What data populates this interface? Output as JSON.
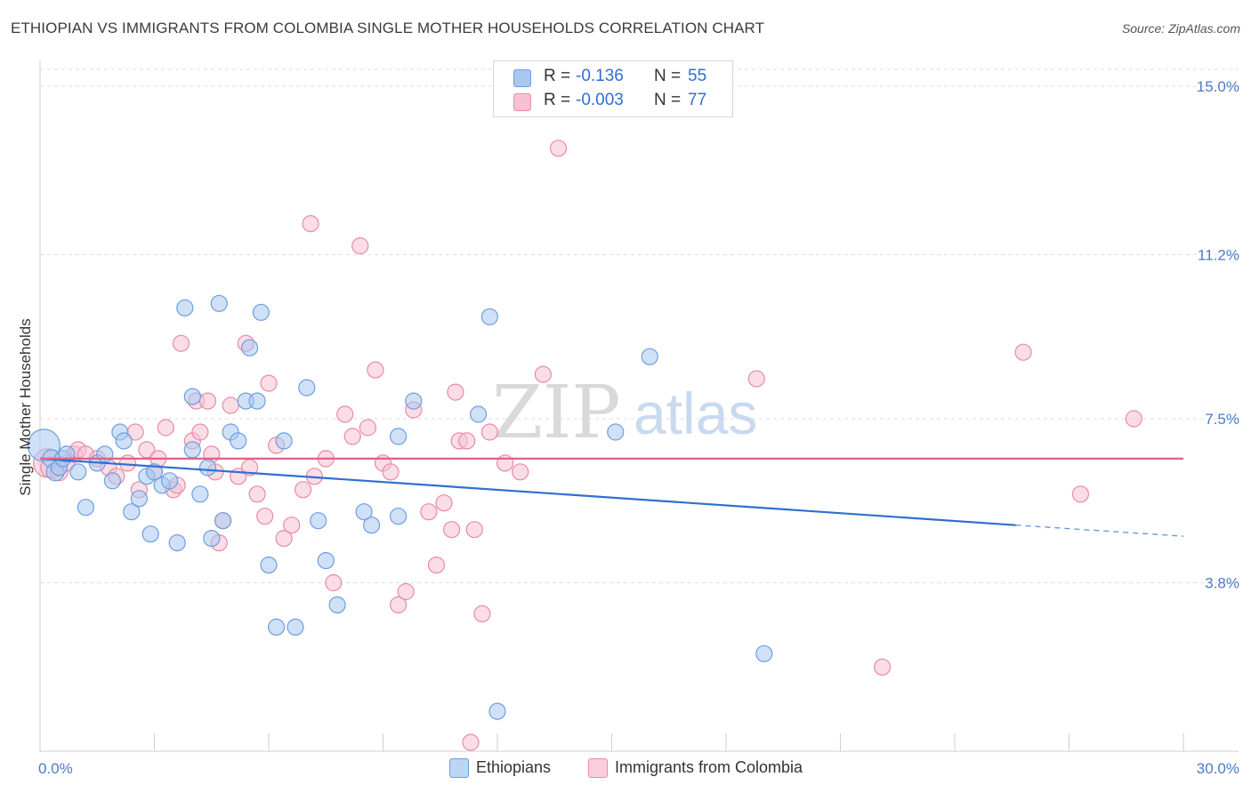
{
  "title": "ETHIOPIAN VS IMMIGRANTS FROM COLOMBIA SINGLE MOTHER HOUSEHOLDS CORRELATION CHART",
  "source": "Source: ZipAtlas.com",
  "watermark": {
    "zip": "ZIP",
    "atlas": "atlas"
  },
  "legend": {
    "r_label": "R =",
    "n_label": "N =",
    "rows": [
      {
        "name": "Ethiopians",
        "r": "-0.136",
        "n": "55",
        "color": "#a9c8f0",
        "border": "#6d9ee0"
      },
      {
        "name": "Immigrants from Colombia",
        "r": "-0.003",
        "n": "77",
        "color": "#f7c1d2",
        "border": "#e98aa8"
      }
    ]
  },
  "chart_data": {
    "type": "scatter",
    "title": "ETHIOPIAN VS IMMIGRANTS FROM COLOMBIA SINGLE MOTHER HOUSEHOLDS CORRELATION CHART",
    "xlabel": "",
    "ylabel": "Single Mother Households",
    "xlim": [
      0,
      30
    ],
    "ylim": [
      0,
      15.8
    ],
    "x_tick_labels": [
      "0.0%",
      "30.0%"
    ],
    "y_ticks": [
      3.8,
      7.5,
      11.2,
      15.0
    ],
    "y_tick_labels": [
      "3.8%",
      "7.5%",
      "11.2%",
      "15.0%"
    ],
    "grid": true,
    "series": [
      {
        "name": "Ethiopians",
        "color": "#6d9ee0",
        "fill": "#a9c8f0",
        "trend": {
          "x0": 0,
          "y0": 6.6,
          "x1": 25.6,
          "y1": 5.1,
          "dash_to_x": 30,
          "dash_to_y": 4.85,
          "color": "#2f6fd1"
        },
        "points": [
          [
            0.1,
            6.9,
            18
          ],
          [
            0.3,
            6.6,
            10
          ],
          [
            0.4,
            6.3,
            10
          ],
          [
            0.5,
            6.4,
            9
          ],
          [
            0.6,
            6.6,
            9
          ],
          [
            0.7,
            6.7,
            9
          ],
          [
            1.0,
            6.3,
            9
          ],
          [
            1.2,
            5.5,
            9
          ],
          [
            1.5,
            6.5,
            9
          ],
          [
            1.7,
            6.7,
            9
          ],
          [
            1.9,
            6.1,
            9
          ],
          [
            2.1,
            7.2,
            9
          ],
          [
            2.2,
            7.0,
            9
          ],
          [
            2.4,
            5.4,
            9
          ],
          [
            2.6,
            5.7,
            9
          ],
          [
            2.8,
            6.2,
            9
          ],
          [
            2.9,
            4.9,
            9
          ],
          [
            3.0,
            6.3,
            9
          ],
          [
            3.2,
            6.0,
            9
          ],
          [
            3.4,
            6.1,
            9
          ],
          [
            3.6,
            4.7,
            9
          ],
          [
            3.8,
            10.0,
            9
          ],
          [
            4.0,
            8.0,
            9
          ],
          [
            4.0,
            6.8,
            9
          ],
          [
            4.2,
            5.8,
            9
          ],
          [
            4.4,
            6.4,
            9
          ],
          [
            4.5,
            4.8,
            9
          ],
          [
            4.7,
            10.1,
            9
          ],
          [
            4.8,
            5.2,
            9
          ],
          [
            5.0,
            7.2,
            9
          ],
          [
            5.2,
            7.0,
            9
          ],
          [
            5.4,
            7.9,
            9
          ],
          [
            5.5,
            9.1,
            9
          ],
          [
            5.7,
            7.9,
            9
          ],
          [
            5.8,
            9.9,
            9
          ],
          [
            6.0,
            4.2,
            9
          ],
          [
            6.2,
            2.8,
            9
          ],
          [
            6.4,
            7.0,
            9
          ],
          [
            6.7,
            2.8,
            9
          ],
          [
            7.0,
            8.2,
            9
          ],
          [
            7.3,
            5.2,
            9
          ],
          [
            7.5,
            4.3,
            9
          ],
          [
            7.8,
            3.3,
            9
          ],
          [
            8.5,
            5.4,
            9
          ],
          [
            8.7,
            5.1,
            9
          ],
          [
            9.4,
            5.3,
            9
          ],
          [
            9.4,
            7.1,
            9
          ],
          [
            9.8,
            7.9,
            9
          ],
          [
            11.5,
            7.6,
            9
          ],
          [
            11.8,
            9.8,
            9
          ],
          [
            12.0,
            0.9,
            9
          ],
          [
            15.1,
            7.2,
            9
          ],
          [
            16.0,
            8.9,
            9
          ],
          [
            19.0,
            2.2,
            9
          ]
        ]
      },
      {
        "name": "Immigrants from Colombia",
        "color": "#e98aa8",
        "fill": "#f7c1d2",
        "trend": {
          "x0": 0,
          "y0": 6.6,
          "x1": 30,
          "y1": 6.6,
          "color": "#e0608a"
        },
        "points": [
          [
            0.2,
            6.5,
            16
          ],
          [
            0.3,
            6.4,
            12
          ],
          [
            0.5,
            6.3,
            10
          ],
          [
            0.7,
            6.5,
            9
          ],
          [
            0.9,
            6.7,
            9
          ],
          [
            1.0,
            6.8,
            9
          ],
          [
            1.2,
            6.7,
            9
          ],
          [
            1.5,
            6.6,
            9
          ],
          [
            1.8,
            6.4,
            9
          ],
          [
            2.0,
            6.2,
            9
          ],
          [
            2.3,
            6.5,
            9
          ],
          [
            2.5,
            7.2,
            9
          ],
          [
            2.6,
            5.9,
            9
          ],
          [
            2.8,
            6.8,
            9
          ],
          [
            3.0,
            6.3,
            9
          ],
          [
            3.1,
            6.6,
            9
          ],
          [
            3.3,
            7.3,
            9
          ],
          [
            3.5,
            5.9,
            9
          ],
          [
            3.6,
            6.0,
            9
          ],
          [
            3.7,
            9.2,
            9
          ],
          [
            4.0,
            7.0,
            9
          ],
          [
            4.1,
            7.9,
            9
          ],
          [
            4.2,
            7.2,
            9
          ],
          [
            4.4,
            7.9,
            9
          ],
          [
            4.5,
            6.7,
            9
          ],
          [
            4.6,
            6.3,
            9
          ],
          [
            4.7,
            4.7,
            9
          ],
          [
            4.8,
            5.2,
            9
          ],
          [
            5.0,
            7.8,
            9
          ],
          [
            5.2,
            6.2,
            9
          ],
          [
            5.4,
            9.2,
            9
          ],
          [
            5.5,
            6.4,
            9
          ],
          [
            5.7,
            5.8,
            9
          ],
          [
            5.9,
            5.3,
            9
          ],
          [
            6.0,
            8.3,
            9
          ],
          [
            6.2,
            6.9,
            9
          ],
          [
            6.4,
            4.8,
            9
          ],
          [
            6.6,
            5.1,
            9
          ],
          [
            6.9,
            5.9,
            9
          ],
          [
            7.1,
            11.9,
            9
          ],
          [
            7.2,
            6.2,
            9
          ],
          [
            7.5,
            6.6,
            9
          ],
          [
            7.7,
            3.8,
            9
          ],
          [
            8.0,
            7.6,
            9
          ],
          [
            8.2,
            7.1,
            9
          ],
          [
            8.4,
            11.4,
            9
          ],
          [
            8.6,
            7.3,
            9
          ],
          [
            8.8,
            8.6,
            9
          ],
          [
            9.0,
            6.5,
            9
          ],
          [
            9.2,
            6.3,
            9
          ],
          [
            9.4,
            3.3,
            9
          ],
          [
            9.6,
            3.6,
            9
          ],
          [
            9.8,
            7.7,
            9
          ],
          [
            10.2,
            5.4,
            9
          ],
          [
            10.4,
            4.2,
            9
          ],
          [
            10.6,
            5.6,
            9
          ],
          [
            10.8,
            5.0,
            9
          ],
          [
            10.9,
            8.1,
            9
          ],
          [
            11.0,
            7.0,
            9
          ],
          [
            11.2,
            7.0,
            9
          ],
          [
            11.4,
            5.0,
            9
          ],
          [
            11.6,
            3.1,
            9
          ],
          [
            11.8,
            7.2,
            9
          ],
          [
            12.2,
            6.5,
            9
          ],
          [
            12.6,
            6.3,
            9
          ],
          [
            13.2,
            8.5,
            9
          ],
          [
            13.6,
            13.6,
            9
          ],
          [
            11.3,
            0.2,
            9
          ],
          [
            18.8,
            8.4,
            9
          ],
          [
            22.1,
            1.9,
            9
          ],
          [
            25.8,
            9.0,
            9
          ],
          [
            27.3,
            5.8,
            9
          ],
          [
            28.7,
            7.5,
            9
          ]
        ]
      }
    ]
  }
}
